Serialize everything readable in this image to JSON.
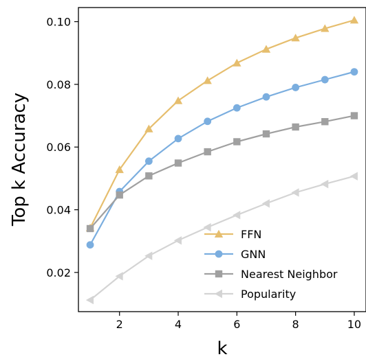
{
  "chart_data": {
    "type": "line",
    "title": "",
    "xlabel": "k",
    "ylabel": "Top k Accuracy",
    "x": [
      1,
      2,
      3,
      4,
      5,
      6,
      7,
      8,
      9,
      10
    ],
    "xlim": [
      0.6,
      10.4
    ],
    "ylim": [
      0.0075,
      0.1045
    ],
    "x_ticks": [
      "2",
      "4",
      "6",
      "8",
      "10"
    ],
    "y_ticks": [
      "0.02",
      "0.04",
      "0.06",
      "0.08",
      "0.10"
    ],
    "grid": false,
    "legend_position": "lower-right",
    "series": [
      {
        "name": "FFN",
        "marker": "triangle-up",
        "color": "#E6BE6E",
        "values": [
          0.0342,
          0.0528,
          0.0658,
          0.0748,
          0.0812,
          0.0868,
          0.0912,
          0.0948,
          0.0978,
          0.1005
        ]
      },
      {
        "name": "GNN",
        "marker": "circle",
        "color": "#7BAEDF",
        "values": [
          0.0288,
          0.0458,
          0.0555,
          0.0627,
          0.0682,
          0.0725,
          0.076,
          0.079,
          0.0815,
          0.084
        ]
      },
      {
        "name": "Nearest Neighbor",
        "marker": "square",
        "color": "#A0A0A0",
        "values": [
          0.034,
          0.0447,
          0.0508,
          0.0549,
          0.0585,
          0.0617,
          0.0642,
          0.0664,
          0.0681,
          0.07
        ]
      },
      {
        "name": "Popularity",
        "marker": "triangle-left",
        "color": "#D4D4D4",
        "values": [
          0.0112,
          0.0188,
          0.0253,
          0.0302,
          0.0344,
          0.0383,
          0.042,
          0.0455,
          0.0482,
          0.0507
        ]
      }
    ]
  }
}
